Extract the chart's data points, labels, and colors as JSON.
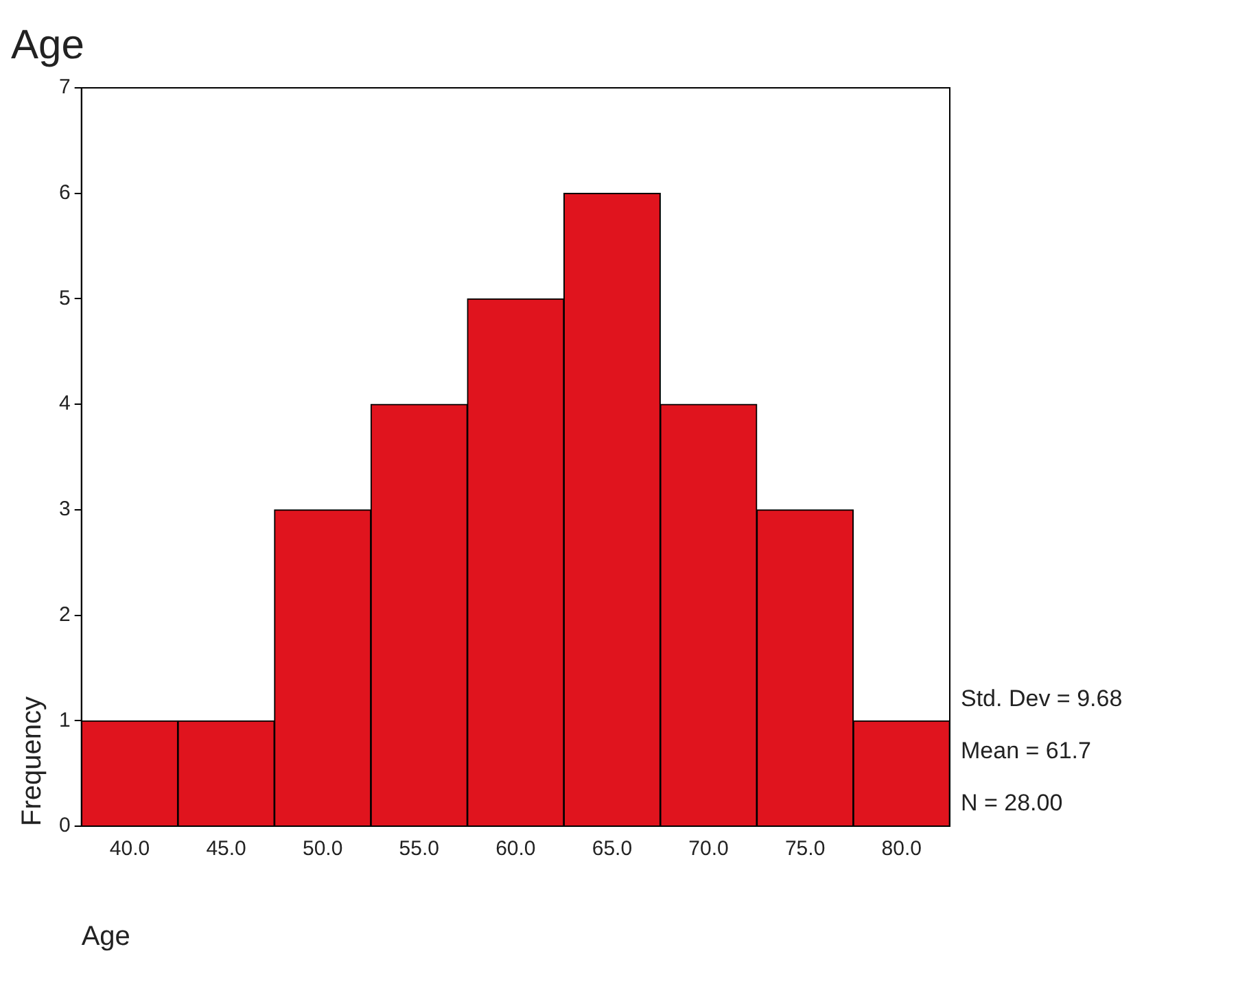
{
  "chart_data": {
    "type": "histogram",
    "title": "Age",
    "xlabel": "Age",
    "ylabel": "Frequency",
    "bins": [
      37.5,
      42.5,
      47.5,
      52.5,
      57.5,
      62.5,
      67.5,
      72.5,
      77.5,
      82.5
    ],
    "values": [
      1,
      1,
      3,
      4,
      5,
      6,
      4,
      3,
      1
    ],
    "color": "#e0141e",
    "xlim": [
      37.5,
      82.5
    ],
    "xticks": [
      {
        "value": 40,
        "label": "40.0"
      },
      {
        "value": 45,
        "label": "45.0"
      },
      {
        "value": 50,
        "label": "50.0"
      },
      {
        "value": 55,
        "label": "55.0"
      },
      {
        "value": 60,
        "label": "60.0"
      },
      {
        "value": 65,
        "label": "65.0"
      },
      {
        "value": 70,
        "label": "70.0"
      },
      {
        "value": 75,
        "label": "75.0"
      },
      {
        "value": 80,
        "label": "80.0"
      }
    ],
    "ylim": [
      0,
      7
    ],
    "yticks": [
      0,
      1,
      2,
      3,
      4,
      5,
      6,
      7
    ],
    "grid": false,
    "legend": false,
    "annotations": [
      "Std. Dev = 9.68",
      "Mean = 61.7",
      "N = 28.00"
    ]
  }
}
